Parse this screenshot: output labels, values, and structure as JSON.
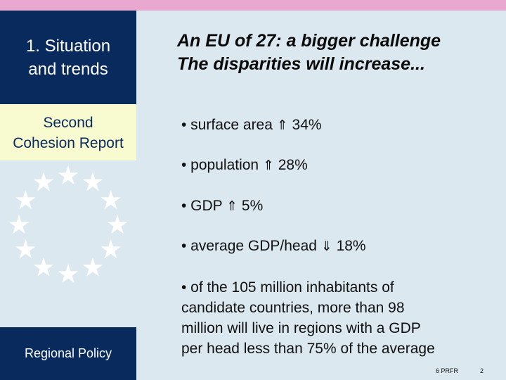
{
  "sidebar": {
    "section_line1": "1. Situation",
    "section_line2": "and trends",
    "report_line1": "Second",
    "report_line2": "Cohesion Report",
    "footer_label": "Regional Policy",
    "emblem_icon": "eu-stars-circle-icon"
  },
  "colors": {
    "navy": "#082a5c",
    "cream": "#f8fad0",
    "pink": "#e9a8d0",
    "background": "#dce8ef"
  },
  "main": {
    "title_line1": "An EU of 27: a bigger challenge",
    "title_line2": "The disparities will increase...",
    "bullets": [
      {
        "prefix": "• surface area ",
        "arrow": "⇑",
        "value": " 34%"
      },
      {
        "prefix": "• population ",
        "arrow": "⇑",
        "value": " 28%"
      },
      {
        "prefix": "• GDP ",
        "arrow": "⇑",
        "value": " 5%"
      },
      {
        "prefix": "• average GDP/head ",
        "arrow": "⇓",
        "value": " 18%"
      }
    ],
    "long_bullet": [
      "• of the 105 million inhabitants of",
      "candidate countries, more than 98",
      "million will live in regions with a GDP",
      "per head less than 75% of the average"
    ]
  },
  "footer": {
    "code": "6 PRFR",
    "page": "2"
  }
}
